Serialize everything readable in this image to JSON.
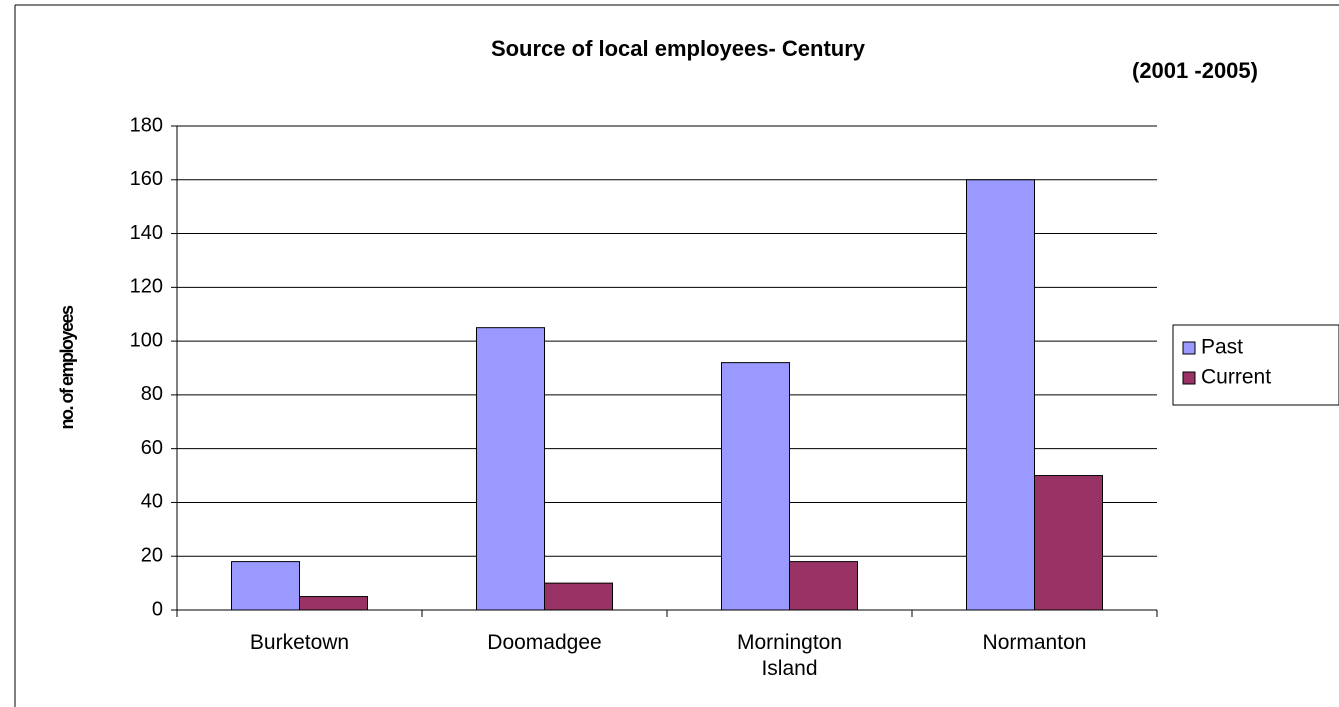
{
  "chart_data": {
    "type": "bar",
    "title": "Source of local employees- Century",
    "subtitle": "(2001 -2005)",
    "y_label": "no. of employees",
    "categories": [
      "Burketown",
      "Doomadgee",
      "Mornington Island",
      "Normanton"
    ],
    "series": [
      {
        "name": "Past",
        "color": "#9999ff",
        "values": [
          18,
          105,
          92,
          160
        ]
      },
      {
        "name": "Current",
        "color": "#993366",
        "values": [
          5,
          10,
          18,
          50
        ]
      }
    ],
    "ylim": [
      0,
      180
    ],
    "yticks": [
      0,
      20,
      40,
      60,
      80,
      100,
      120,
      140,
      160,
      180
    ],
    "grid": true,
    "legend": "right"
  }
}
